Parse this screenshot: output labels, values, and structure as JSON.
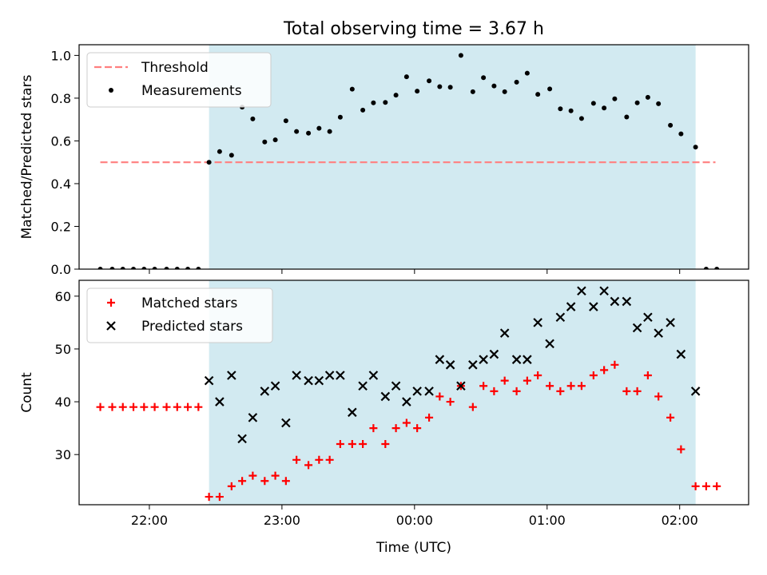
{
  "chart_data": {
    "type": "scatter",
    "title": "Total observing time = 3.67 h",
    "xlabel": "Time (UTC)",
    "x_unit": "hours UTC",
    "x_ticks": [
      {
        "value": 22.0,
        "label": "22:00"
      },
      {
        "value": 23.0,
        "label": "23:00"
      },
      {
        "value": 24.0,
        "label": "00:00"
      },
      {
        "value": 25.0,
        "label": "01:00"
      },
      {
        "value": 26.0,
        "label": "02:00"
      }
    ],
    "xlim": [
      21.47,
      26.52
    ],
    "observing_window": {
      "start": 22.45,
      "end": 26.12,
      "color": "#add8e6"
    },
    "panels": [
      {
        "ylabel": "Matched/Predicted stars",
        "ylim": [
          0.0,
          1.05
        ],
        "y_ticks": [
          0.0,
          0.2,
          0.4,
          0.6,
          0.8,
          1.0
        ],
        "y_tick_labels": [
          "0.0",
          "0.2",
          "0.4",
          "0.6",
          "0.8",
          "1.0"
        ],
        "legend": {
          "position": "upper left"
        },
        "series": [
          {
            "name": "Threshold",
            "kind": "dashed-line",
            "color": "#ff7f7f",
            "points": [
              [
                21.63,
                0.5
              ],
              [
                26.27,
                0.5
              ]
            ]
          },
          {
            "name": "Measurements",
            "kind": "dot",
            "color": "#000000",
            "points": [
              [
                21.63,
                0.0
              ],
              [
                21.72,
                0.0
              ],
              [
                21.8,
                0.0
              ],
              [
                21.88,
                0.0
              ],
              [
                21.96,
                0.0
              ],
              [
                22.04,
                0.0
              ],
              [
                22.13,
                0.0
              ],
              [
                22.21,
                0.0
              ],
              [
                22.29,
                0.0
              ],
              [
                22.37,
                0.0
              ],
              [
                22.45,
                0.5
              ],
              [
                22.53,
                0.55
              ],
              [
                22.62,
                0.533
              ],
              [
                22.7,
                0.758
              ],
              [
                22.78,
                0.703
              ],
              [
                22.87,
                0.595
              ],
              [
                22.95,
                0.605
              ],
              [
                23.03,
                0.694
              ],
              [
                23.11,
                0.644
              ],
              [
                23.2,
                0.636
              ],
              [
                23.28,
                0.659
              ],
              [
                23.36,
                0.644
              ],
              [
                23.44,
                0.711
              ],
              [
                23.53,
                0.842
              ],
              [
                23.61,
                0.744
              ],
              [
                23.69,
                0.778
              ],
              [
                23.78,
                0.78
              ],
              [
                23.86,
                0.814
              ],
              [
                23.94,
                0.9
              ],
              [
                24.02,
                0.833
              ],
              [
                24.11,
                0.881
              ],
              [
                24.19,
                0.854
              ],
              [
                24.27,
                0.851
              ],
              [
                24.35,
                1.0
              ],
              [
                24.44,
                0.83
              ],
              [
                24.52,
                0.896
              ],
              [
                24.6,
                0.857
              ],
              [
                24.68,
                0.83
              ],
              [
                24.77,
                0.875
              ],
              [
                24.85,
                0.917
              ],
              [
                24.93,
                0.818
              ],
              [
                25.02,
                0.843
              ],
              [
                25.1,
                0.75
              ],
              [
                25.18,
                0.741
              ],
              [
                25.26,
                0.705
              ],
              [
                25.35,
                0.776
              ],
              [
                25.43,
                0.754
              ],
              [
                25.51,
                0.797
              ],
              [
                25.6,
                0.712
              ],
              [
                25.68,
                0.778
              ],
              [
                25.76,
                0.804
              ],
              [
                25.84,
                0.774
              ],
              [
                25.93,
                0.673
              ],
              [
                26.01,
                0.633
              ],
              [
                26.12,
                0.571
              ],
              [
                26.2,
                0.0
              ],
              [
                26.28,
                0.0
              ]
            ]
          }
        ]
      },
      {
        "ylabel": "Count",
        "ylim": [
          20.5,
          63.0
        ],
        "y_ticks": [
          30,
          40,
          50,
          60
        ],
        "y_tick_labels": [
          "30",
          "40",
          "50",
          "60"
        ],
        "legend": {
          "position": "upper left"
        },
        "series": [
          {
            "name": "Matched stars",
            "kind": "plus",
            "color": "#ff0000",
            "points": [
              [
                21.63,
                39
              ],
              [
                21.72,
                39
              ],
              [
                21.8,
                39
              ],
              [
                21.88,
                39
              ],
              [
                21.96,
                39
              ],
              [
                22.04,
                39
              ],
              [
                22.13,
                39
              ],
              [
                22.21,
                39
              ],
              [
                22.29,
                39
              ],
              [
                22.37,
                39
              ],
              [
                22.45,
                22
              ],
              [
                22.53,
                22
              ],
              [
                22.62,
                24
              ],
              [
                22.7,
                25
              ],
              [
                22.78,
                26
              ],
              [
                22.87,
                25
              ],
              [
                22.95,
                26
              ],
              [
                23.03,
                25
              ],
              [
                23.11,
                29
              ],
              [
                23.2,
                28
              ],
              [
                23.28,
                29
              ],
              [
                23.36,
                29
              ],
              [
                23.44,
                32
              ],
              [
                23.53,
                32
              ],
              [
                23.61,
                32
              ],
              [
                23.69,
                35
              ],
              [
                23.78,
                32
              ],
              [
                23.86,
                35
              ],
              [
                23.94,
                36
              ],
              [
                24.02,
                35
              ],
              [
                24.11,
                37
              ],
              [
                24.19,
                41
              ],
              [
                24.27,
                40
              ],
              [
                24.35,
                43
              ],
              [
                24.44,
                39
              ],
              [
                24.52,
                43
              ],
              [
                24.6,
                42
              ],
              [
                24.68,
                44
              ],
              [
                24.77,
                42
              ],
              [
                24.85,
                44
              ],
              [
                24.93,
                45
              ],
              [
                25.02,
                43
              ],
              [
                25.1,
                42
              ],
              [
                25.18,
                43
              ],
              [
                25.26,
                43
              ],
              [
                25.35,
                45
              ],
              [
                25.43,
                46
              ],
              [
                25.51,
                47
              ],
              [
                25.6,
                42
              ],
              [
                25.68,
                42
              ],
              [
                25.76,
                45
              ],
              [
                25.84,
                41
              ],
              [
                25.93,
                37
              ],
              [
                26.01,
                31
              ],
              [
                26.12,
                24
              ],
              [
                26.2,
                24
              ],
              [
                26.28,
                24
              ]
            ]
          },
          {
            "name": "Predicted stars",
            "kind": "cross",
            "color": "#000000",
            "points": [
              [
                22.45,
                44
              ],
              [
                22.53,
                40
              ],
              [
                22.62,
                45
              ],
              [
                22.7,
                33
              ],
              [
                22.78,
                37
              ],
              [
                22.87,
                42
              ],
              [
                22.95,
                43
              ],
              [
                23.03,
                36
              ],
              [
                23.11,
                45
              ],
              [
                23.2,
                44
              ],
              [
                23.28,
                44
              ],
              [
                23.36,
                45
              ],
              [
                23.44,
                45
              ],
              [
                23.53,
                38
              ],
              [
                23.61,
                43
              ],
              [
                23.69,
                45
              ],
              [
                23.78,
                41
              ],
              [
                23.86,
                43
              ],
              [
                23.94,
                40
              ],
              [
                24.02,
                42
              ],
              [
                24.11,
                42
              ],
              [
                24.19,
                48
              ],
              [
                24.27,
                47
              ],
              [
                24.35,
                43
              ],
              [
                24.44,
                47
              ],
              [
                24.52,
                48
              ],
              [
                24.6,
                49
              ],
              [
                24.68,
                53
              ],
              [
                24.77,
                48
              ],
              [
                24.85,
                48
              ],
              [
                24.93,
                55
              ],
              [
                25.02,
                51
              ],
              [
                25.1,
                56
              ],
              [
                25.18,
                58
              ],
              [
                25.26,
                61
              ],
              [
                25.35,
                58
              ],
              [
                25.43,
                61
              ],
              [
                25.51,
                59
              ],
              [
                25.6,
                59
              ],
              [
                25.68,
                54
              ],
              [
                25.76,
                56
              ],
              [
                25.84,
                53
              ],
              [
                25.93,
                55
              ],
              [
                26.01,
                49
              ],
              [
                26.12,
                42
              ]
            ]
          }
        ]
      }
    ]
  }
}
